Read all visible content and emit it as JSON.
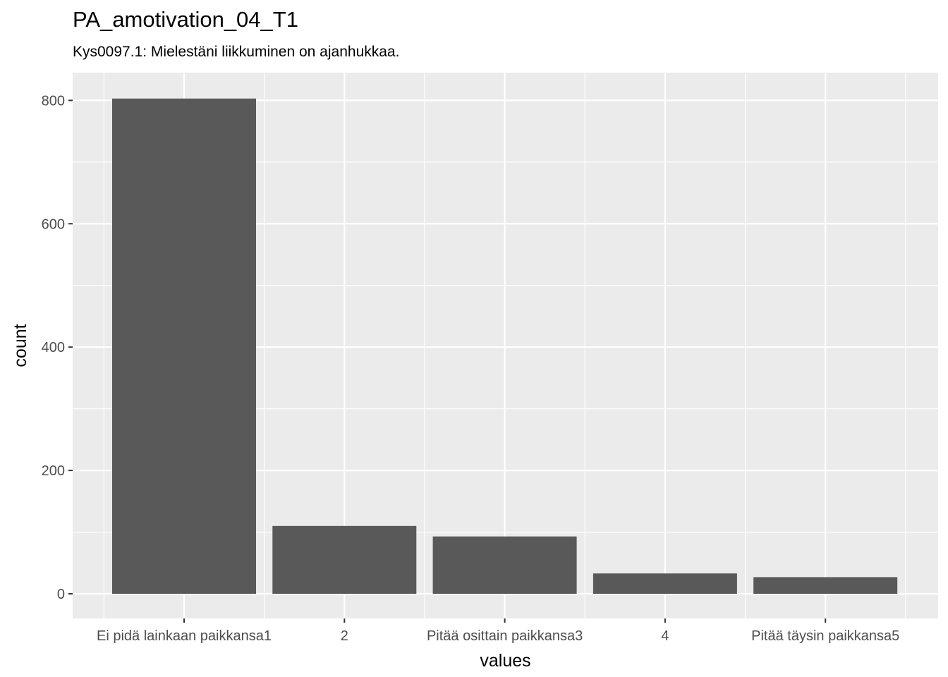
{
  "chart_data": {
    "type": "bar",
    "title": "PA_amotivation_04_T1",
    "subtitle": "Kys0097.1: Mielestäni liikkuminen on ajanhukkaa.",
    "xlabel": "values",
    "ylabel": "count",
    "categories": [
      "Ei pidä lainkaan paikkansa1",
      "2",
      "Pitää osittain paikkansa3",
      "4",
      "Pitää täysin paikkansa5"
    ],
    "values": [
      803,
      110,
      93,
      33,
      27
    ],
    "ylim": [
      -40,
      845
    ],
    "yticks": [
      0,
      200,
      400,
      600,
      800
    ],
    "grid": true,
    "legend": "none",
    "colors": {
      "bar": "#595959",
      "panel": "#ebebeb",
      "grid": "#ffffff"
    }
  }
}
